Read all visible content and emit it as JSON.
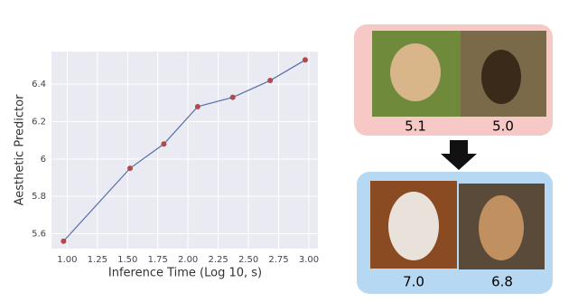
{
  "chart_data": {
    "type": "line",
    "xlabel": "Inference Time (Log 10, s)",
    "ylabel": "Aesthetic Predictor",
    "x": [
      0.97,
      1.52,
      1.8,
      2.08,
      2.37,
      2.68,
      2.97
    ],
    "series": [
      {
        "color": "#5470a8",
        "marker_color": "#b04a4a",
        "values": [
          5.56,
          5.95,
          6.08,
          6.28,
          6.33,
          6.42,
          6.53
        ]
      }
    ],
    "xlim": [
      0.87,
      3.075
    ],
    "ylim": [
      5.52,
      6.575
    ],
    "xticks": [
      {
        "value": 1.0,
        "label": "1.00"
      },
      {
        "value": 1.25,
        "label": "1.25"
      },
      {
        "value": 1.5,
        "label": "1.50"
      },
      {
        "value": 1.75,
        "label": "1.75"
      },
      {
        "value": 2.0,
        "label": "2.00"
      },
      {
        "value": 2.25,
        "label": "2.25"
      },
      {
        "value": 2.5,
        "label": "2.50"
      },
      {
        "value": 2.75,
        "label": "2.75"
      },
      {
        "value": 3.0,
        "label": "3.00"
      }
    ],
    "yticks": [
      5.6,
      5.8,
      6.0,
      6.2,
      6.4
    ],
    "grid": true
  },
  "examples": {
    "before": [
      "5.1",
      "5.0"
    ],
    "after": [
      "7.0",
      "6.8"
    ]
  }
}
